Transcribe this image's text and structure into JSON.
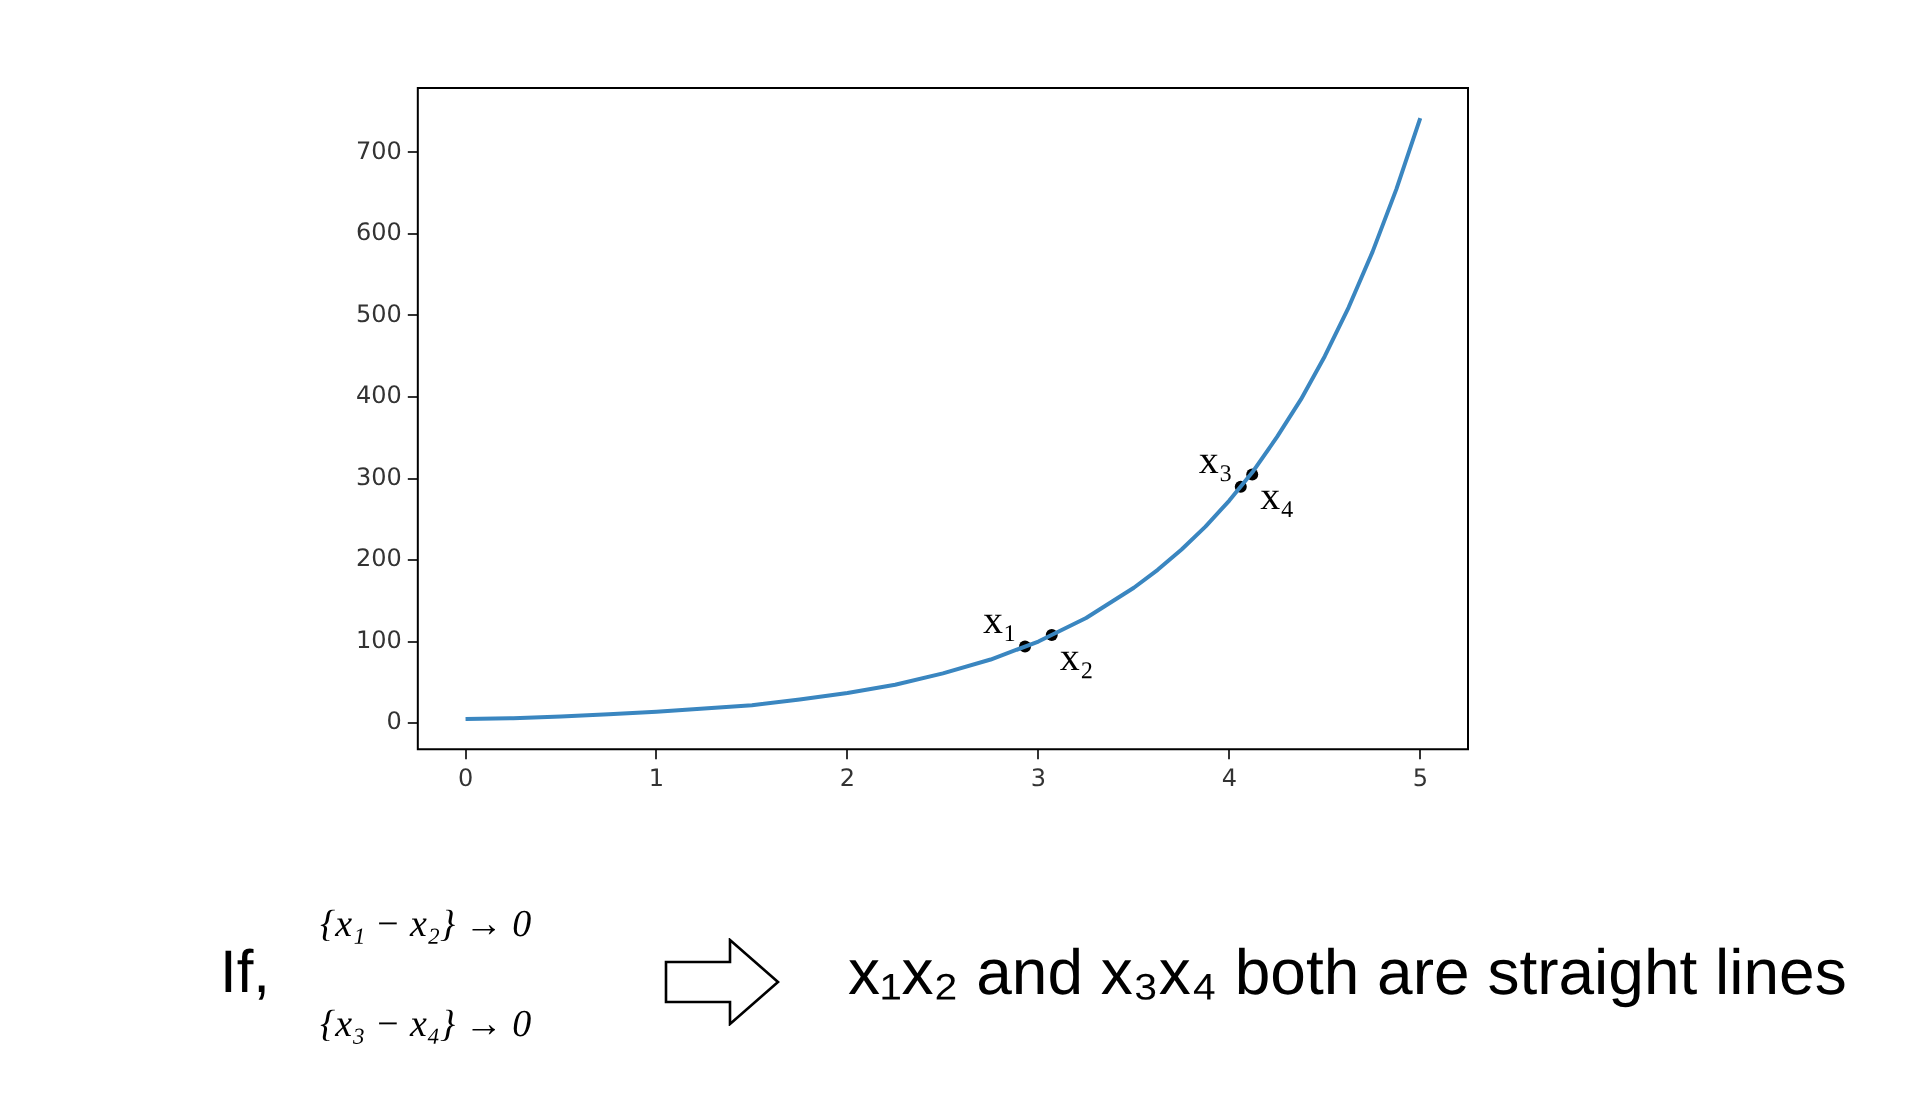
{
  "chart_data": {
    "type": "line",
    "xlim": [
      -0.25,
      5.25
    ],
    "ylim": [
      -32,
      779
    ],
    "xticks": [
      0,
      1,
      2,
      3,
      4,
      5
    ],
    "yticks": [
      0,
      100,
      200,
      300,
      400,
      500,
      600,
      700
    ],
    "grid": false,
    "legend": false,
    "series": [
      {
        "type": "line",
        "color": "#3a86c0",
        "marker": "none",
        "x": [
          0,
          0.25,
          0.5,
          0.75,
          1,
          1.25,
          1.5,
          1.75,
          2,
          2.25,
          2.5,
          2.75,
          3,
          3.25,
          3.5,
          3.625,
          3.75,
          3.875,
          4,
          4.125,
          4.25,
          4.375,
          4.5,
          4.625,
          4.75,
          4.875,
          5
        ],
        "values": [
          5,
          6,
          8,
          11,
          14,
          18,
          22,
          29,
          37,
          47,
          61,
          78,
          100,
          129,
          166,
          188,
          213,
          241,
          273,
          309,
          351,
          397,
          450,
          510,
          578,
          655,
          742
        ]
      },
      {
        "type": "scatter",
        "color": "#000000",
        "marker": "circle",
        "x": [
          2.93,
          3.07,
          4.06,
          4.12
        ],
        "values": [
          94,
          108,
          290,
          305
        ]
      }
    ],
    "annotations": [
      {
        "text": "x₁",
        "x": 2.93,
        "y": 94
      },
      {
        "text": "x₂",
        "x": 3.07,
        "y": 108
      },
      {
        "text": "x₃",
        "x": 4.06,
        "y": 290
      },
      {
        "text": "x₄",
        "x": 4.12,
        "y": 305
      },
      "If,",
      "{x₁ − x₂} → 0",
      "{x₃ − x₄} → 0",
      "x₁x₂ and x₃x₄ both are straight lines"
    ]
  }
}
